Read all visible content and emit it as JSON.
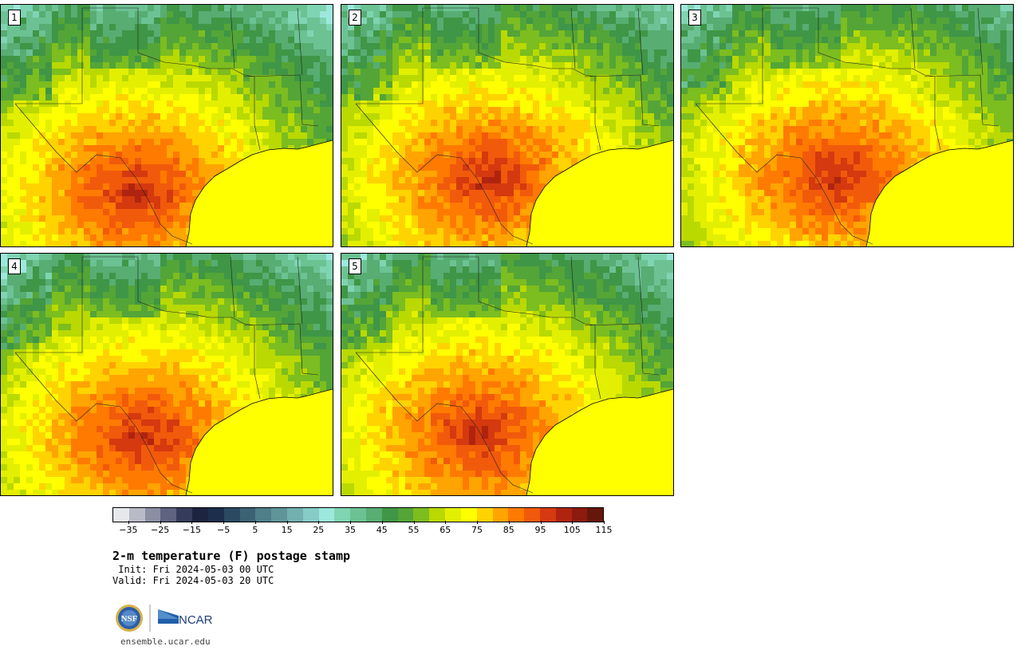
{
  "panels": [
    {
      "label": "1"
    },
    {
      "label": "2"
    },
    {
      "label": "3"
    },
    {
      "label": "4"
    },
    {
      "label": "5"
    }
  ],
  "colorbar": {
    "colors": [
      "#e6e8ec",
      "#b8bac6",
      "#8c8fa3",
      "#5f6380",
      "#363c5c",
      "#1c2440",
      "#1c2e4c",
      "#2a4a62",
      "#3a6273",
      "#4f7f88",
      "#5f9599",
      "#72b0af",
      "#86cbc6",
      "#9de8dc",
      "#7fd4b2",
      "#6cc293",
      "#57ad72",
      "#3f9646",
      "#54a537",
      "#7cbd1f",
      "#b9d900",
      "#e3ef00",
      "#ffff00",
      "#ffd300",
      "#ffa400",
      "#ff7a00",
      "#f15a0b",
      "#d4390f",
      "#b0240f",
      "#8c1a0d",
      "#661709"
    ],
    "tick_labels": [
      "−35",
      "−25",
      "−15",
      "−5",
      "5",
      "15",
      "25",
      "35",
      "45",
      "55",
      "65",
      "75",
      "85",
      "95",
      "105",
      "115"
    ],
    "min": -40,
    "max": 120,
    "units": "F"
  },
  "title": "2-m temperature (F) postage stamp",
  "init": " Init: Fri 2024-05-03 00 UTC",
  "valid": "Valid: Fri 2024-05-03 20 UTC",
  "logos": {
    "nsf_text": "NSF",
    "ncar_text": "NCAR"
  },
  "site": "ensemble.ucar.edu"
}
